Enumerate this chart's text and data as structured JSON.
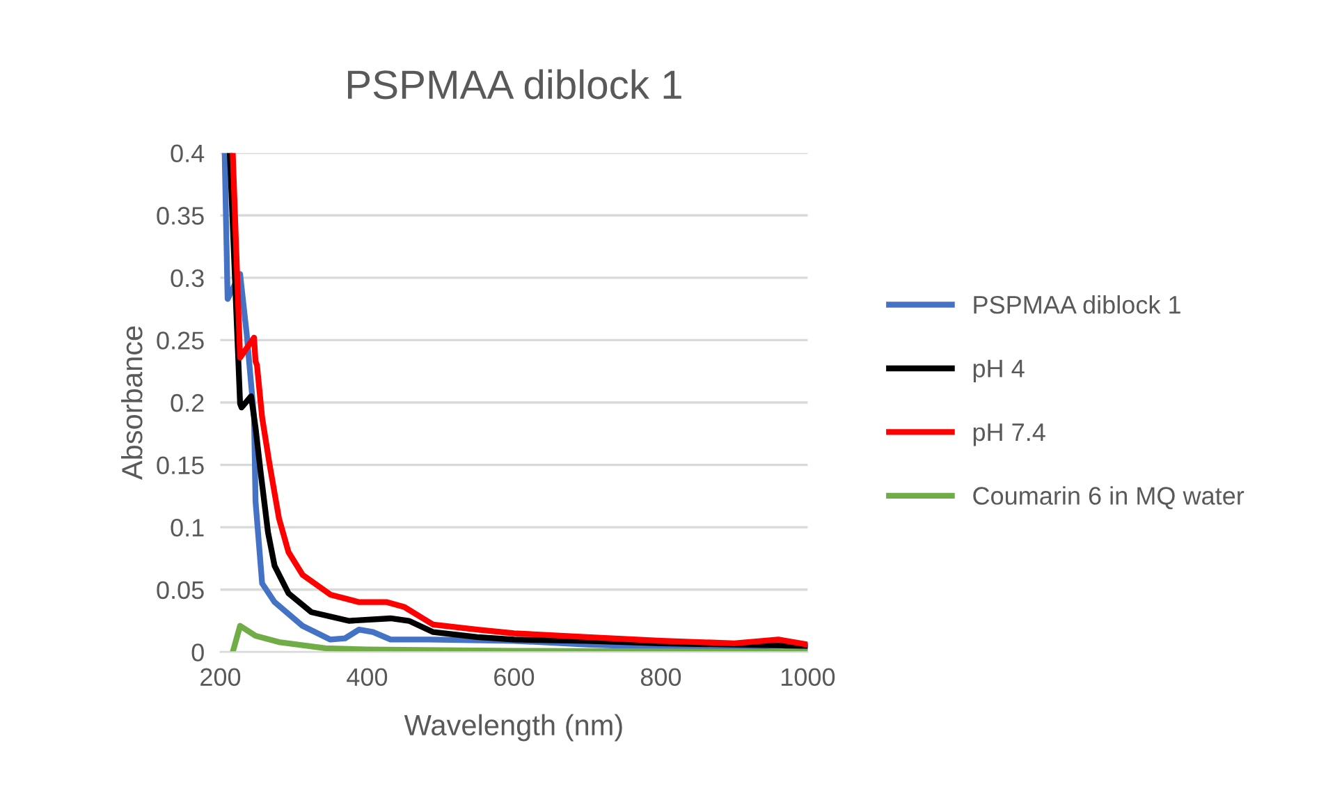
{
  "chart_data": {
    "type": "line",
    "title": "PSPMAA diblock 1",
    "xlabel": "Wavelength (nm)",
    "ylabel": "Absorbance",
    "xlim": [
      200,
      1000
    ],
    "xticks": [
      200,
      400,
      600,
      800,
      1000
    ],
    "ylim": [
      0,
      0.4
    ],
    "yticks": [
      0,
      0.05,
      0.1,
      0.15,
      0.2,
      0.25,
      0.3,
      0.35,
      0.4
    ],
    "grid": "y",
    "legend": "right",
    "marker": "none",
    "line_style": "solid",
    "series": [
      {
        "name": "PSPMAA diblock 1",
        "color": "#4472c4",
        "x": [
          206,
          210,
          227,
          236,
          246,
          248,
          257,
          274,
          312,
          350,
          370,
          389,
          408,
          432,
          484,
          600,
          700,
          800,
          900,
          960,
          1000
        ],
        "values": [
          0.4,
          0.283,
          0.303,
          0.255,
          0.188,
          0.121,
          0.055,
          0.04,
          0.021,
          0.01,
          0.011,
          0.018,
          0.016,
          0.01,
          0.01,
          0.009,
          0.006,
          0.004,
          0.004,
          0.005,
          0.004
        ]
      },
      {
        "name": "pH 4",
        "color": "#000000",
        "x": [
          213,
          227,
          229,
          242,
          248,
          255,
          265,
          274,
          293,
          324,
          375,
          432,
          457,
          490,
          550,
          600,
          700,
          800,
          900,
          1000
        ],
        "values": [
          0.4,
          0.199,
          0.196,
          0.205,
          0.18,
          0.144,
          0.096,
          0.069,
          0.047,
          0.032,
          0.025,
          0.027,
          0.025,
          0.016,
          0.012,
          0.01,
          0.009,
          0.007,
          0.006,
          0.005
        ]
      },
      {
        "name": "pH 7.4",
        "color": "#ff0000",
        "x": [
          217,
          227,
          246,
          248,
          250,
          257,
          267,
          280,
          293,
          312,
          350,
          389,
          427,
          451,
          476,
          490,
          550,
          600,
          700,
          800,
          900,
          960,
          1000
        ],
        "values": [
          0.4,
          0.236,
          0.252,
          0.233,
          0.23,
          0.188,
          0.151,
          0.107,
          0.08,
          0.062,
          0.046,
          0.04,
          0.04,
          0.036,
          0.027,
          0.022,
          0.018,
          0.015,
          0.012,
          0.009,
          0.007,
          0.01,
          0.006
        ]
      },
      {
        "name": "Coumarin 6 in MQ water",
        "color": "#70ad47",
        "x": [
          217,
          227,
          248,
          280,
          343,
          400,
          600,
          1000
        ],
        "values": [
          0,
          0.021,
          0.013,
          0.008,
          0.003,
          0.002,
          0.001,
          0
        ]
      }
    ]
  }
}
